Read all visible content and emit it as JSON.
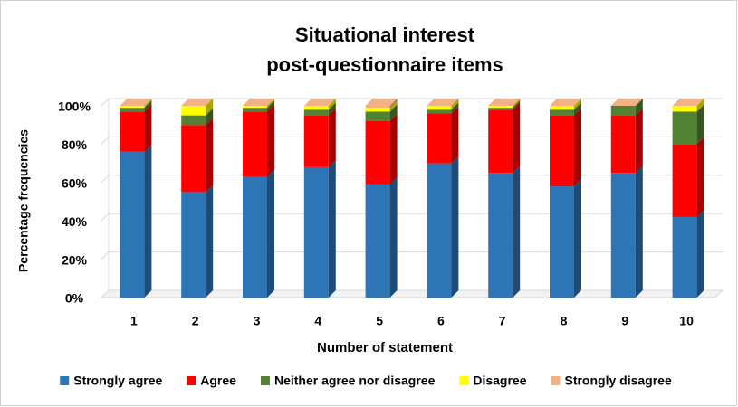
{
  "chart_data": {
    "type": "bar3d_stacked",
    "title": [
      "Situational interest",
      "post-questionnaire items"
    ],
    "x_label": "Number of statement",
    "y_label": "Percentage frequencies",
    "categories": [
      "1",
      "2",
      "3",
      "4",
      "5",
      "6",
      "7",
      "8",
      "9",
      "10"
    ],
    "series": [
      {
        "name": "Strongly agree",
        "color": "#2e75b6",
        "values": [
          76,
          55,
          63,
          68,
          59,
          70,
          65,
          58,
          65,
          42
        ]
      },
      {
        "name": "Agree",
        "color": "#ff0000",
        "values": [
          21,
          35,
          34,
          27,
          33,
          26,
          33,
          37,
          30,
          38
        ]
      },
      {
        "name": "Neither agree nor disagree",
        "color": "#548235",
        "values": [
          2,
          5,
          2,
          3,
          5,
          2,
          1,
          3,
          5,
          17
        ]
      },
      {
        "name": "Disagree",
        "color": "#ffff00",
        "values": [
          1,
          5,
          1,
          2,
          2,
          2,
          1,
          2,
          0,
          3
        ]
      },
      {
        "name": "Strongly disagree",
        "color": "#f4b183",
        "values": [
          0,
          0,
          0,
          0,
          1,
          0,
          0,
          0,
          0,
          0
        ]
      }
    ],
    "ylim": [
      0,
      100
    ],
    "yticks": [
      {
        "value": 0,
        "label": "0%"
      },
      {
        "value": 20,
        "label": "20%"
      },
      {
        "value": 40,
        "label": "40%"
      },
      {
        "value": 60,
        "label": "60%"
      },
      {
        "value": 80,
        "label": "80%"
      },
      {
        "value": 100,
        "label": "100%"
      }
    ],
    "grid": true,
    "legend": "bottom"
  }
}
